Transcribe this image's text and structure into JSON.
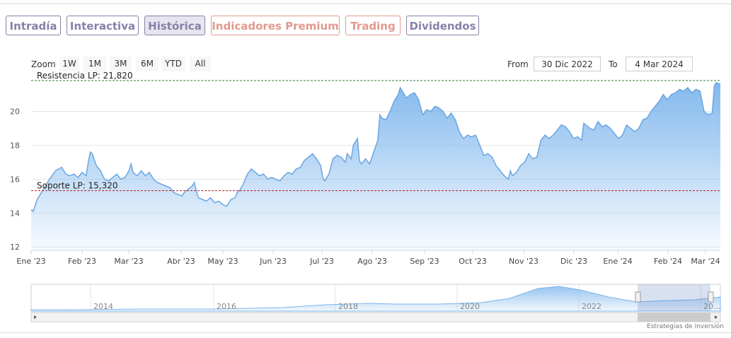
{
  "tabs": [
    {
      "label": "Intradía",
      "color": "#8a7fa8"
    },
    {
      "label": "Interactiva",
      "color": "#8a7fa8"
    },
    {
      "label": "Histórica",
      "color": "#8a7fa8",
      "active": true
    },
    {
      "label": "Indicadores Premium",
      "color": "#e09a90"
    },
    {
      "label": "Trading",
      "color": "#e09a90"
    },
    {
      "label": "Dividendos",
      "color": "#8a7fa8"
    }
  ],
  "range_selector": {
    "zoom_label": "Zoom",
    "buttons": [
      "1W",
      "1M",
      "3M",
      "6M",
      "YTD",
      "All"
    ],
    "from_label": "From",
    "from_value": "30 Dic 2022",
    "to_label": "To",
    "to_value": "4 Mar 2024"
  },
  "credit": "Estrategias de Inversión",
  "chart_data": {
    "type": "area",
    "title": "",
    "xlabel": "",
    "ylabel": "",
    "ylim": [
      11.8,
      21.9
    ],
    "y_ticks": [
      12,
      14,
      16,
      18,
      20
    ],
    "x_ticks": [
      "Ene '23",
      "Feb '23",
      "Mar '23",
      "Abr '23",
      "May '23",
      "Jun '23",
      "Jul '23",
      "Ago '23",
      "Sep '23",
      "Oct '23",
      "Nov '23",
      "Dic '23",
      "Ene '24",
      "Feb '24",
      "Mar '24"
    ],
    "x_range_months": [
      -0.03,
      14.1
    ],
    "grid": true,
    "series": [
      {
        "points": [
          [
            0,
            14.2
          ],
          [
            0.05,
            14.1
          ],
          [
            0.15,
            14.8
          ],
          [
            0.3,
            15.4
          ],
          [
            0.45,
            16.0
          ],
          [
            0.6,
            16.5
          ],
          [
            0.75,
            16.7
          ],
          [
            0.85,
            16.3
          ],
          [
            0.95,
            16.2
          ],
          [
            1.05,
            16.3
          ],
          [
            1.15,
            16.1
          ],
          [
            1.25,
            16.4
          ],
          [
            1.35,
            16.2
          ],
          [
            1.4,
            17.0
          ],
          [
            1.45,
            17.6
          ],
          [
            1.5,
            17.5
          ],
          [
            1.6,
            16.8
          ],
          [
            1.7,
            16.5
          ],
          [
            1.8,
            16.0
          ],
          [
            1.9,
            15.9
          ],
          [
            2.0,
            16.1
          ],
          [
            2.1,
            16.3
          ],
          [
            2.2,
            16.0
          ],
          [
            2.3,
            16.1
          ],
          [
            2.4,
            16.5
          ],
          [
            2.45,
            16.9
          ],
          [
            2.5,
            16.4
          ],
          [
            2.6,
            16.2
          ],
          [
            2.7,
            16.5
          ],
          [
            2.8,
            16.2
          ],
          [
            2.9,
            16.4
          ],
          [
            3.0,
            16.0
          ],
          [
            3.1,
            15.8
          ],
          [
            3.2,
            15.7
          ],
          [
            3.3,
            15.6
          ],
          [
            3.4,
            15.5
          ],
          [
            3.5,
            15.2
          ],
          [
            3.6,
            15.1
          ],
          [
            3.7,
            15.0
          ],
          [
            3.75,
            15.2
          ],
          [
            3.85,
            15.4
          ],
          [
            3.95,
            15.6
          ],
          [
            4.0,
            15.8
          ],
          [
            4.05,
            15.3
          ],
          [
            4.1,
            14.9
          ],
          [
            4.2,
            14.8
          ],
          [
            4.3,
            14.7
          ],
          [
            4.4,
            14.9
          ],
          [
            4.5,
            14.6
          ],
          [
            4.6,
            14.7
          ],
          [
            4.7,
            14.5
          ],
          [
            4.8,
            14.4
          ],
          [
            4.9,
            14.8
          ],
          [
            5.0,
            14.9
          ],
          [
            5.05,
            15.2
          ],
          [
            5.1,
            15.3
          ],
          [
            5.2,
            15.7
          ],
          [
            5.3,
            16.3
          ],
          [
            5.4,
            16.6
          ],
          [
            5.5,
            16.4
          ],
          [
            5.6,
            16.2
          ],
          [
            5.7,
            16.3
          ],
          [
            5.8,
            16.0
          ],
          [
            5.9,
            16.1
          ],
          [
            6.0,
            16.0
          ],
          [
            6.1,
            15.9
          ],
          [
            6.2,
            16.2
          ],
          [
            6.3,
            16.4
          ],
          [
            6.4,
            16.3
          ],
          [
            6.5,
            16.6
          ],
          [
            6.6,
            16.7
          ],
          [
            6.7,
            17.1
          ],
          [
            6.8,
            17.3
          ],
          [
            6.9,
            17.5
          ],
          [
            7.0,
            17.2
          ],
          [
            7.1,
            16.8
          ],
          [
            7.15,
            16.1
          ],
          [
            7.2,
            15.9
          ],
          [
            7.3,
            16.3
          ],
          [
            7.4,
            17.2
          ],
          [
            7.5,
            17.4
          ],
          [
            7.6,
            17.3
          ],
          [
            7.7,
            17.0
          ],
          [
            7.75,
            17.5
          ],
          [
            7.85,
            17.2
          ],
          [
            7.9,
            18.0
          ],
          [
            8.0,
            18.4
          ],
          [
            8.05,
            17.1
          ],
          [
            8.1,
            16.9
          ],
          [
            8.2,
            17.2
          ],
          [
            8.3,
            16.9
          ],
          [
            8.4,
            17.6
          ],
          [
            8.5,
            18.3
          ],
          [
            8.55,
            19.8
          ],
          [
            8.6,
            19.6
          ],
          [
            8.7,
            19.5
          ],
          [
            8.8,
            20.0
          ],
          [
            8.9,
            20.6
          ],
          [
            9.0,
            21.0
          ],
          [
            9.05,
            21.4
          ],
          [
            9.1,
            21.2
          ],
          [
            9.2,
            20.8
          ],
          [
            9.3,
            21.0
          ],
          [
            9.4,
            21.1
          ],
          [
            9.5,
            20.7
          ],
          [
            9.6,
            19.8
          ],
          [
            9.7,
            20.1
          ],
          [
            9.8,
            20.0
          ],
          [
            9.9,
            20.3
          ],
          [
            10.0,
            20.2
          ],
          [
            10.1,
            20.0
          ],
          [
            10.2,
            19.6
          ],
          [
            10.3,
            19.9
          ],
          [
            10.4,
            19.5
          ],
          [
            10.5,
            18.8
          ],
          [
            10.6,
            18.4
          ],
          [
            10.7,
            18.6
          ],
          [
            10.8,
            18.5
          ],
          [
            10.9,
            18.6
          ],
          [
            11.0,
            18.0
          ],
          [
            11.1,
            17.4
          ],
          [
            11.2,
            17.5
          ],
          [
            11.3,
            17.3
          ],
          [
            11.4,
            16.8
          ],
          [
            11.5,
            16.5
          ],
          [
            11.6,
            16.2
          ],
          [
            11.7,
            16.0
          ],
          [
            11.75,
            16.5
          ],
          [
            11.8,
            16.2
          ],
          [
            11.9,
            16.4
          ],
          [
            12.0,
            16.8
          ],
          [
            12.1,
            17.0
          ],
          [
            12.2,
            17.5
          ],
          [
            12.3,
            17.2
          ],
          [
            12.4,
            17.3
          ],
          [
            12.5,
            18.3
          ],
          [
            12.6,
            18.6
          ],
          [
            12.7,
            18.4
          ],
          [
            12.8,
            18.6
          ],
          [
            12.9,
            18.9
          ],
          [
            13.0,
            19.2
          ],
          [
            13.1,
            19.1
          ],
          [
            13.2,
            18.8
          ],
          [
            13.3,
            18.4
          ],
          [
            13.4,
            18.5
          ],
          [
            13.5,
            18.3
          ],
          [
            13.55,
            19.3
          ],
          [
            13.6,
            19.2
          ],
          [
            13.7,
            19.0
          ],
          [
            13.8,
            18.9
          ],
          [
            13.9,
            19.4
          ],
          [
            14.0,
            19.1
          ],
          [
            14.1,
            19.2
          ],
          [
            14.2,
            19.0
          ],
          [
            14.3,
            18.7
          ],
          [
            14.4,
            18.4
          ],
          [
            14.5,
            18.6
          ],
          [
            14.6,
            19.2
          ],
          [
            14.7,
            19.0
          ],
          [
            14.8,
            18.8
          ],
          [
            14.9,
            19.0
          ],
          [
            15.0,
            19.5
          ],
          [
            15.1,
            19.6
          ],
          [
            15.2,
            20.0
          ],
          [
            15.3,
            20.3
          ],
          [
            15.4,
            20.6
          ],
          [
            15.5,
            21.0
          ],
          [
            15.6,
            20.7
          ],
          [
            15.7,
            21.0
          ],
          [
            15.8,
            21.1
          ],
          [
            15.9,
            21.3
          ],
          [
            16.0,
            21.2
          ],
          [
            16.1,
            21.4
          ],
          [
            16.2,
            21.1
          ],
          [
            16.3,
            21.3
          ],
          [
            16.4,
            21.2
          ],
          [
            16.5,
            20.0
          ],
          [
            16.6,
            19.8
          ],
          [
            16.7,
            19.9
          ],
          [
            16.75,
            21.5
          ],
          [
            16.8,
            21.7
          ],
          [
            16.9,
            21.6
          ]
        ]
      }
    ],
    "annotations": [
      {
        "label": "Resistencia LP: 21,820",
        "value": 21.82,
        "color": "#2e7d32"
      },
      {
        "label": "Soporte LP: 15,320",
        "value": 15.32,
        "color": "#b71c1c"
      }
    ],
    "navigator": {
      "x_ticks": [
        "2014",
        "2016",
        "2018",
        "2020",
        "2022",
        "20..."
      ]
    }
  }
}
